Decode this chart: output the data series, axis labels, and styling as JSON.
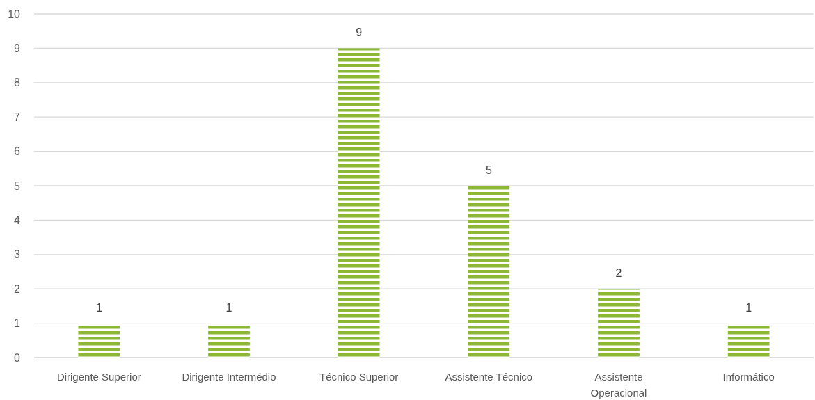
{
  "chart_data": {
    "type": "bar",
    "categories": [
      "Dirigente Superior",
      "Dirigente Intermédio",
      "Técnico Superior",
      "Assistente Técnico",
      "Assistente Operacional",
      "Informático"
    ],
    "values": [
      1,
      1,
      9,
      5,
      2,
      1
    ],
    "color": "#8cb836",
    "ylim": [
      0,
      10
    ],
    "yticks": [
      0,
      1,
      2,
      3,
      4,
      5,
      6,
      7,
      8,
      9,
      10
    ],
    "grid": "y",
    "data_labels": true
  }
}
